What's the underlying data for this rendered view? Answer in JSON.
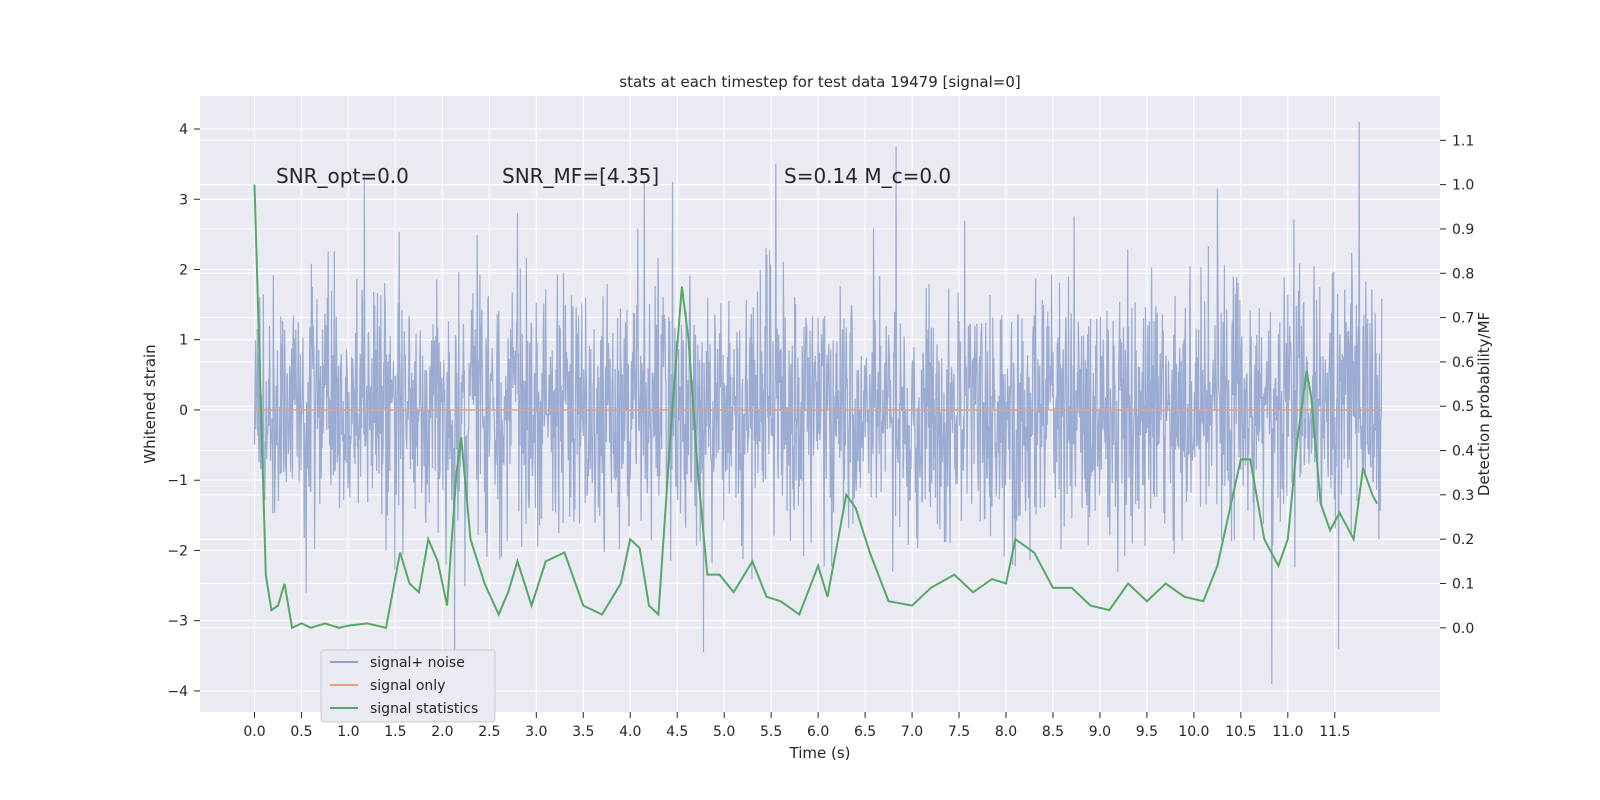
{
  "chart_data": {
    "type": "line",
    "title": "stats at each timestep for test data 19479 [signal=0]",
    "xlabel": "Time (s)",
    "ylabel_left": "Whitened strain",
    "ylabel_right": "Detection probability/MF",
    "xlim": [
      -0.58,
      12.62
    ],
    "ylim_left": [
      -4.3,
      4.47
    ],
    "ylim_right": [
      -0.19,
      1.2
    ],
    "x_ticks": [
      0.0,
      0.5,
      1.0,
      1.5,
      2.0,
      2.5,
      3.0,
      3.5,
      4.0,
      4.5,
      5.0,
      5.5,
      6.0,
      6.5,
      7.0,
      7.5,
      8.0,
      8.5,
      9.0,
      9.5,
      10.0,
      10.5,
      11.0,
      11.5
    ],
    "x_tick_labels": [
      "0.0",
      "0.5",
      "1.0",
      "1.5",
      "2.0",
      "2.5",
      "3.0",
      "3.5",
      "4.0",
      "4.5",
      "5.0",
      "5.5",
      "6.0",
      "6.5",
      "7.0",
      "7.5",
      "8.0",
      "8.5",
      "9.0",
      "9.5",
      "10.0",
      "10.5",
      "11.0",
      "11.5"
    ],
    "y_left_ticks": [
      4,
      3,
      2,
      1,
      0,
      -1,
      -2,
      -3,
      -4
    ],
    "y_left_tick_labels": [
      "4",
      "3",
      "2",
      "1",
      "0",
      "−1",
      "−2",
      "−3",
      "−4"
    ],
    "y_right_ticks": [
      1.1,
      1.0,
      0.9,
      0.8,
      0.7,
      0.6,
      0.5,
      0.4,
      0.3,
      0.2,
      0.1,
      0.0
    ],
    "y_right_tick_labels": [
      "1.1",
      "1.0",
      "0.9",
      "0.8",
      "0.7",
      "0.6",
      "0.5",
      "0.4",
      "0.3",
      "0.2",
      "0.1",
      "0.0"
    ],
    "grid": true,
    "legend_position": "bottom-left",
    "annotations": [
      {
        "text": "SNR_opt=0.0",
        "x": 0.2,
        "y": 3.3
      },
      {
        "text": "SNR_MF=[4.35]",
        "x": 2.6,
        "y": 3.3
      },
      {
        "text": "S=0.14   M_c=0.0",
        "x": 5.6,
        "y": 3.3
      }
    ],
    "series": [
      {
        "name": "signal+ noise",
        "axis": "left",
        "color": "#8da0cb",
        "style": "dense noise trace, band roughly -1.35 to 1.35 with spikes to about ±3",
        "x_range": [
          0.0,
          12.0
        ],
        "peaks": [
          {
            "x": 1.17,
            "y": 3.35
          },
          {
            "x": 2.13,
            "y": -3.5
          },
          {
            "x": 2.8,
            "y": 2.8
          },
          {
            "x": 4.15,
            "y": 3.25
          },
          {
            "x": 4.45,
            "y": 3.25
          },
          {
            "x": 4.78,
            "y": -3.45
          },
          {
            "x": 5.55,
            "y": 3.5
          },
          {
            "x": 6.83,
            "y": 3.75
          },
          {
            "x": 10.25,
            "y": 3.15
          },
          {
            "x": 10.83,
            "y": -3.9
          },
          {
            "x": 11.54,
            "y": -3.4
          },
          {
            "x": 11.76,
            "y": 4.1
          }
        ]
      },
      {
        "name": "signal only",
        "axis": "left",
        "color": "#e5a082",
        "x": [
          0.0,
          12.0
        ],
        "y": [
          0.0,
          0.0
        ]
      },
      {
        "name": "signal statistics",
        "axis": "right",
        "color": "#55a868",
        "x": [
          0.0,
          0.12,
          0.18,
          0.25,
          0.32,
          0.4,
          0.5,
          0.6,
          0.75,
          0.9,
          1.0,
          1.2,
          1.4,
          1.55,
          1.65,
          1.75,
          1.85,
          1.95,
          2.05,
          2.15,
          2.2,
          2.3,
          2.45,
          2.6,
          2.7,
          2.8,
          2.95,
          3.1,
          3.3,
          3.5,
          3.7,
          3.9,
          4.0,
          4.1,
          4.2,
          4.3,
          4.45,
          4.55,
          4.62,
          4.72,
          4.82,
          4.95,
          5.1,
          5.3,
          5.45,
          5.6,
          5.8,
          6.0,
          6.1,
          6.3,
          6.4,
          6.55,
          6.75,
          7.0,
          7.2,
          7.45,
          7.65,
          7.85,
          8.0,
          8.1,
          8.3,
          8.5,
          8.7,
          8.9,
          9.1,
          9.3,
          9.5,
          9.7,
          9.9,
          10.1,
          10.25,
          10.5,
          10.6,
          10.75,
          10.9,
          11.0,
          11.1,
          11.2,
          11.25,
          11.35,
          11.45,
          11.55,
          11.7,
          11.8,
          11.9,
          11.95
        ],
        "y": [
          1.0,
          0.12,
          0.04,
          0.05,
          0.1,
          0.0,
          0.01,
          0.0,
          0.01,
          0.0,
          0.005,
          0.01,
          0.0,
          0.17,
          0.1,
          0.08,
          0.2,
          0.15,
          0.05,
          0.35,
          0.43,
          0.2,
          0.1,
          0.03,
          0.08,
          0.15,
          0.05,
          0.15,
          0.17,
          0.05,
          0.03,
          0.1,
          0.2,
          0.18,
          0.05,
          0.03,
          0.5,
          0.77,
          0.65,
          0.35,
          0.12,
          0.12,
          0.08,
          0.15,
          0.07,
          0.06,
          0.03,
          0.14,
          0.07,
          0.3,
          0.27,
          0.17,
          0.06,
          0.05,
          0.09,
          0.12,
          0.08,
          0.11,
          0.1,
          0.2,
          0.17,
          0.09,
          0.09,
          0.05,
          0.04,
          0.1,
          0.06,
          0.1,
          0.07,
          0.06,
          0.14,
          0.38,
          0.38,
          0.2,
          0.14,
          0.2,
          0.42,
          0.58,
          0.52,
          0.28,
          0.22,
          0.26,
          0.2,
          0.36,
          0.3,
          0.28
        ]
      }
    ]
  }
}
